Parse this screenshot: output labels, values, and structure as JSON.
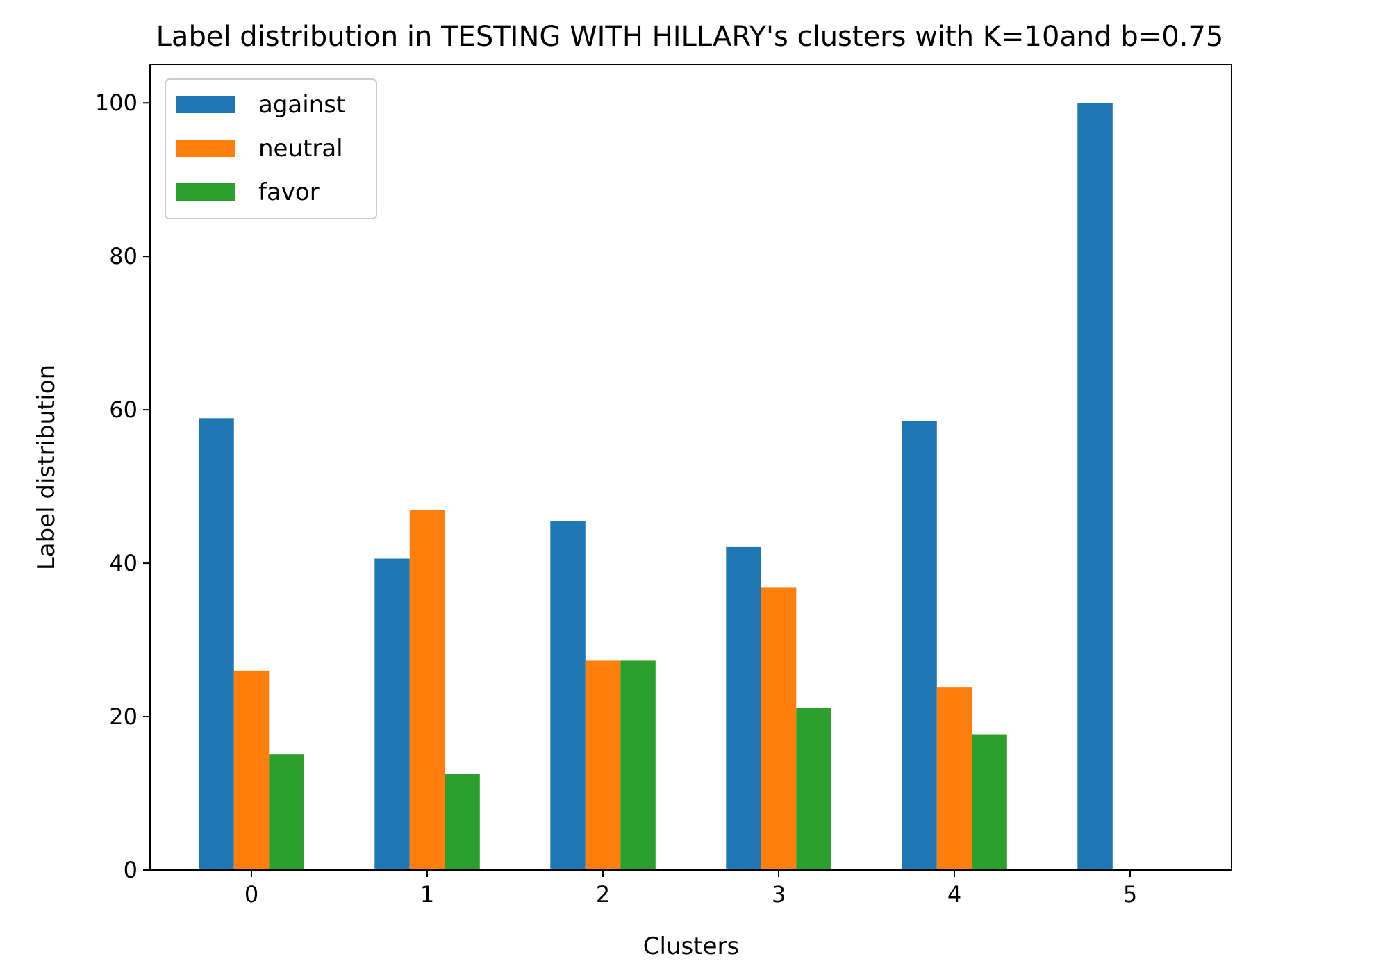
{
  "chart_data": {
    "type": "bar",
    "title": "Label distribution in TESTING WITH HILLARY's clusters with K=10and b=0.75",
    "xlabel": "Clusters",
    "ylabel": "Label distribution",
    "categories": [
      "0",
      "1",
      "2",
      "3",
      "4",
      "5"
    ],
    "yticks": [
      "0",
      "20",
      "40",
      "60",
      "80",
      "100"
    ],
    "ylim": [
      0,
      105
    ],
    "grid": false,
    "legend_position": "top-left",
    "series": [
      {
        "name": "against",
        "color": "#1f77b4",
        "values": [
          58.9,
          40.6,
          45.5,
          42.1,
          58.5,
          100.0
        ]
      },
      {
        "name": "neutral",
        "color": "#ff7f0e",
        "values": [
          26.0,
          46.9,
          27.3,
          36.8,
          23.8,
          0
        ]
      },
      {
        "name": "favor",
        "color": "#2ca02c",
        "values": [
          15.1,
          12.5,
          27.3,
          21.1,
          17.7,
          0
        ]
      }
    ]
  }
}
